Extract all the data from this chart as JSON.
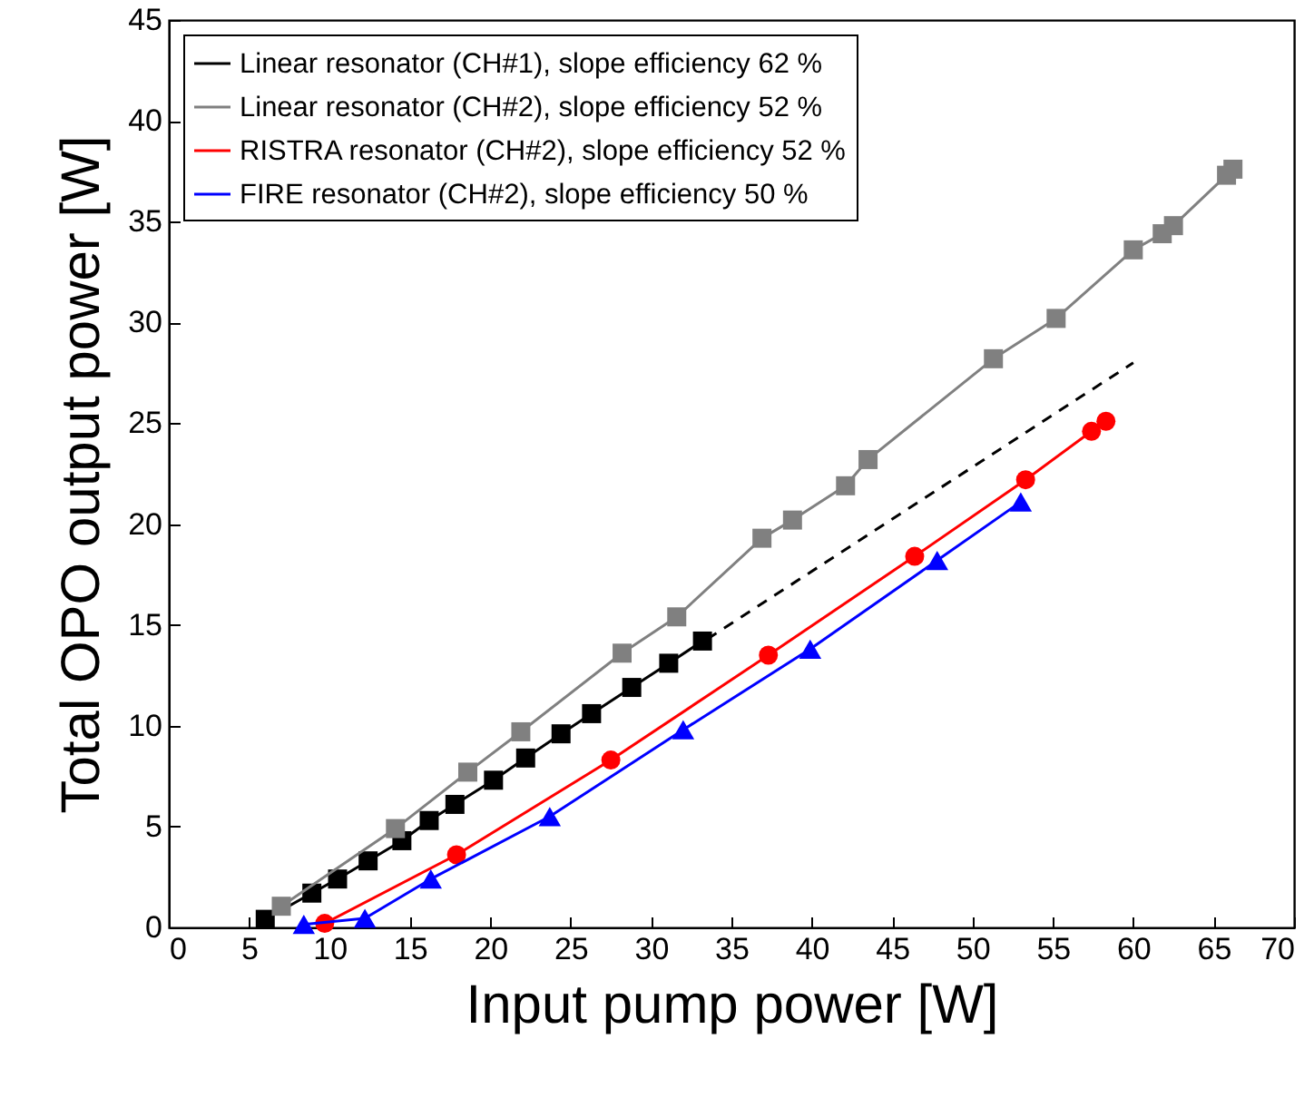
{
  "chart_data": {
    "type": "line",
    "xlabel": "Input pump power [W]",
    "ylabel": "Total OPO output power [W]",
    "xlim": [
      0,
      70
    ],
    "ylim": [
      0,
      45
    ],
    "xticks": [
      0,
      5,
      10,
      15,
      20,
      25,
      30,
      35,
      40,
      45,
      50,
      55,
      60,
      65,
      70
    ],
    "yticks": [
      0,
      5,
      10,
      15,
      20,
      25,
      30,
      35,
      40,
      45
    ],
    "grid": false,
    "legend": "top left",
    "line_style": "solid",
    "series": [
      {
        "name": "Linear resonator (CH#1), slope efficiency 62 %",
        "color": "#000000",
        "marker": "square",
        "x": [
          6.0,
          8.9,
          10.5,
          12.4,
          14.5,
          16.2,
          17.8,
          20.2,
          22.2,
          24.4,
          26.3,
          28.8,
          31.1,
          33.2
        ],
        "values": [
          0.4,
          1.7,
          2.4,
          3.3,
          4.3,
          5.3,
          6.1,
          7.3,
          8.4,
          9.6,
          10.6,
          11.9,
          13.1,
          14.2
        ]
      },
      {
        "name": "Linear resonator (CH#2), slope efficiency 52 %",
        "color": "#808080",
        "marker": "square",
        "x": [
          7.0,
          14.1,
          18.6,
          21.9,
          28.2,
          31.6,
          36.9,
          38.8,
          42.1,
          43.5,
          51.3,
          55.2,
          60.0,
          61.8,
          62.5,
          65.8,
          66.2
        ],
        "values": [
          1.05,
          4.9,
          7.7,
          9.7,
          13.6,
          15.4,
          19.3,
          20.2,
          21.9,
          23.2,
          28.2,
          30.2,
          33.6,
          34.4,
          34.8,
          37.3,
          37.6
        ]
      },
      {
        "name": "RISTRA resonator (CH#2), slope efficiency 52 %",
        "color": "#ff0000",
        "marker": "circle",
        "x": [
          9.7,
          17.9,
          27.5,
          37.3,
          46.4,
          53.3,
          57.4,
          58.3
        ],
        "values": [
          0.2,
          3.6,
          8.3,
          13.5,
          18.4,
          22.2,
          24.6,
          25.1
        ]
      },
      {
        "name": "FIRE resonator (CH#2), slope efficiency 50 %",
        "color": "#0000ff",
        "marker": "triangle",
        "x": [
          8.4,
          12.2,
          16.3,
          23.7,
          32.0,
          39.9,
          47.8,
          53.0
        ],
        "values": [
          0.15,
          0.45,
          2.4,
          5.5,
          9.8,
          13.8,
          18.2,
          21.1
        ]
      },
      {
        "color": "#000000",
        "marker": "none",
        "line_style": "dashed",
        "x": [
          33.5,
          60.0
        ],
        "values": [
          14.3,
          28.0
        ]
      }
    ]
  }
}
